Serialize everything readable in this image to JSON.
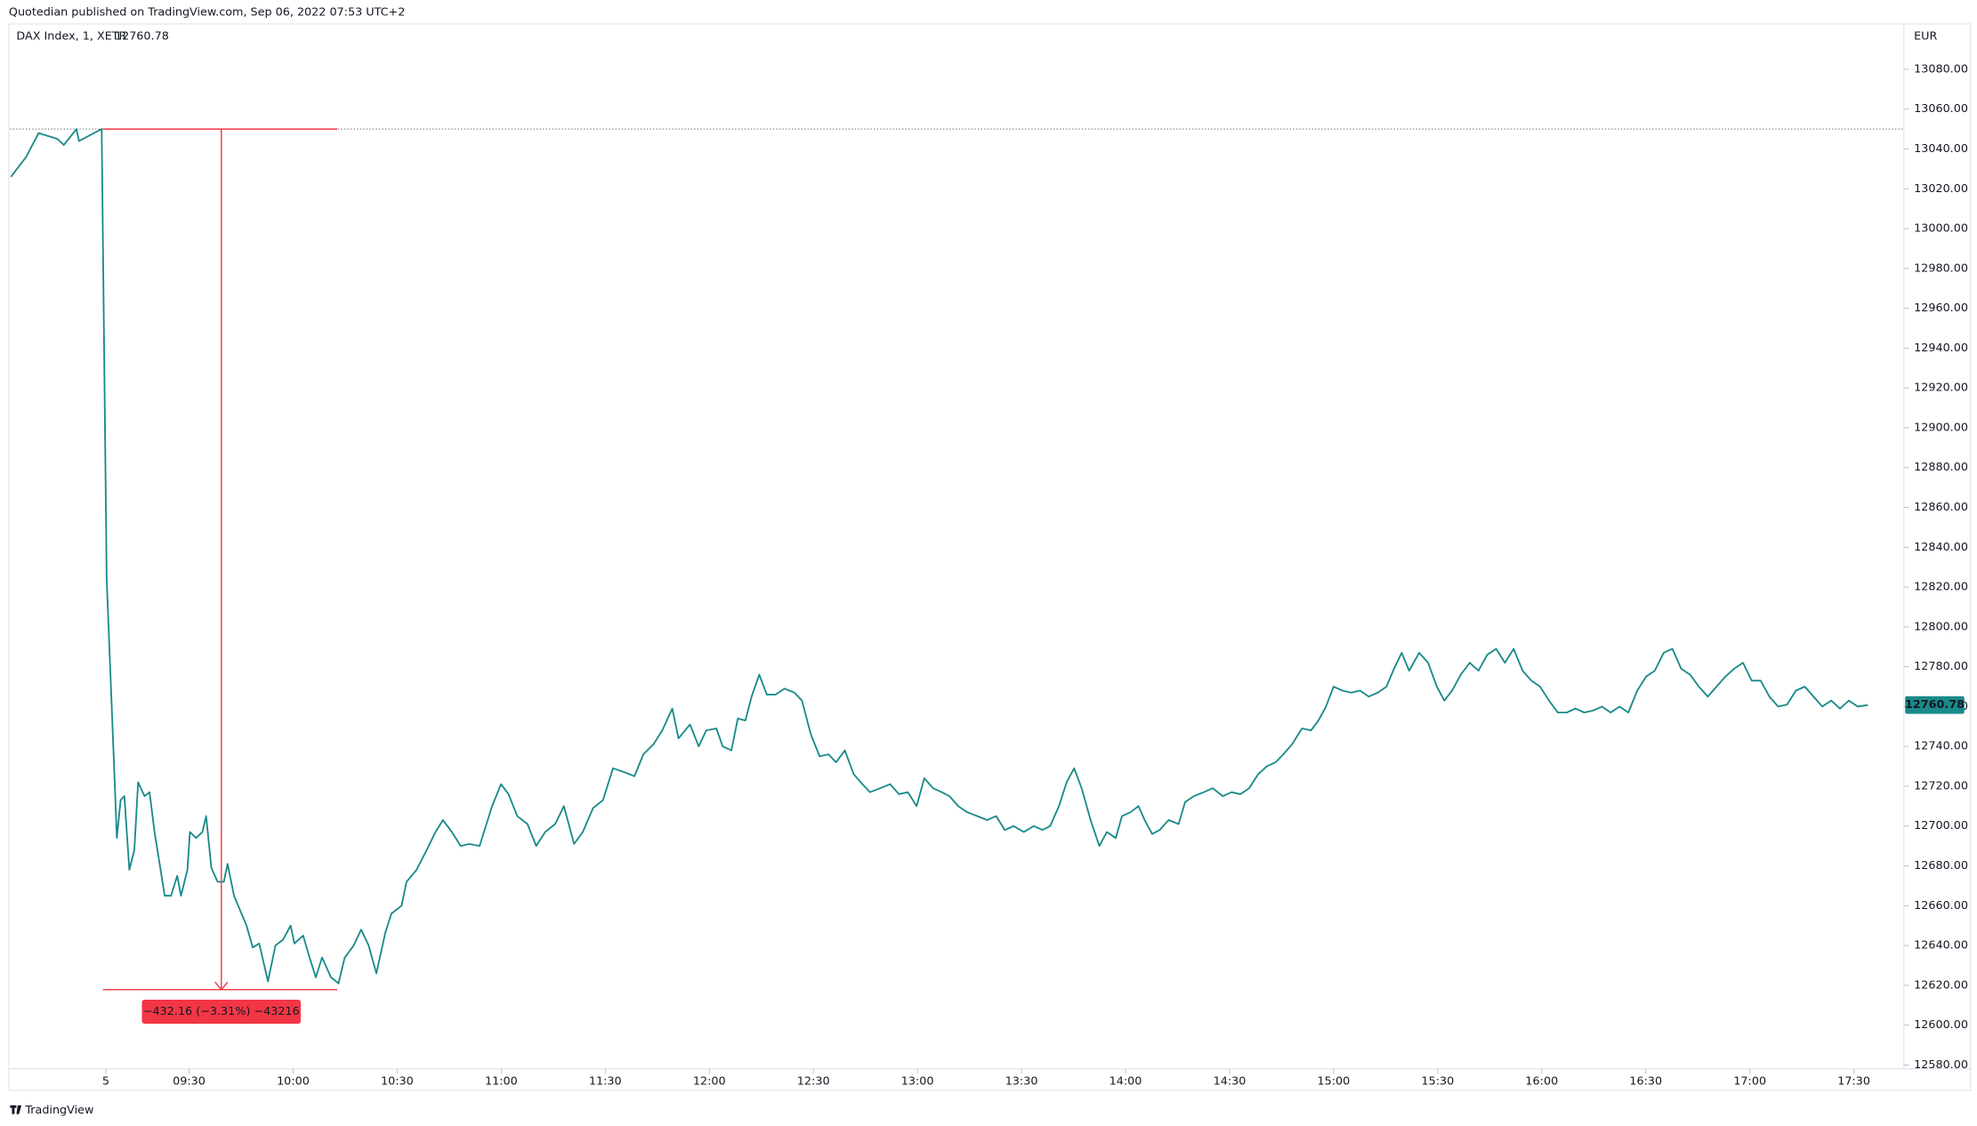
{
  "chart_data": {
    "type": "line",
    "publisher": "Quotedian published on TradingView.com, Sep 06, 2022 07:53 UTC+2",
    "currency": "EUR",
    "footer": "TradingView",
    "last_value": 12760.78,
    "series": [
      {
        "name": "DAX Index, 1, XETR",
        "color": "#1a8a8a",
        "x": [
          8.644,
          8.717,
          8.777,
          8.868,
          8.898,
          8.959,
          8.971,
          9.08,
          9.104,
          9.14,
          9.153,
          9.171,
          9.189,
          9.213,
          9.237,
          9.255,
          9.286,
          9.31,
          9.334,
          9.383,
          9.413,
          9.443,
          9.461,
          9.492,
          9.504,
          9.534,
          9.564,
          9.582,
          9.607,
          9.637,
          9.667,
          9.685,
          9.716,
          9.776,
          9.806,
          9.837,
          9.879,
          9.915,
          9.952,
          9.988,
          10.006,
          10.048,
          10.079,
          10.109,
          10.139,
          10.182,
          10.218,
          10.248,
          10.291,
          10.327,
          10.363,
          10.4,
          10.442,
          10.472,
          10.521,
          10.545,
          10.593,
          10.642,
          10.684,
          10.72,
          10.763,
          10.805,
          10.847,
          10.896,
          10.956,
          10.999,
          11.035,
          11.077,
          11.126,
          11.168,
          11.211,
          11.259,
          11.301,
          11.35,
          11.392,
          11.441,
          11.489,
          11.537,
          11.592,
          11.64,
          11.683,
          11.731,
          11.774,
          11.822,
          11.852,
          11.907,
          11.949,
          11.985,
          12.034,
          12.064,
          12.106,
          12.137,
          12.173,
          12.203,
          12.24,
          12.276,
          12.318,
          12.361,
          12.409,
          12.445,
          12.488,
          12.53,
          12.573,
          12.609,
          12.651,
          12.694,
          12.736,
          12.772,
          12.821,
          12.869,
          12.911,
          12.954,
          12.996,
          13.033,
          13.075,
          13.117,
          13.154,
          13.196,
          13.238,
          13.287,
          13.335,
          13.378,
          13.42,
          13.462,
          13.511,
          13.559,
          13.601,
          13.638,
          13.68,
          13.717,
          13.753,
          13.789,
          13.832,
          13.874,
          13.91,
          13.953,
          13.983,
          14.025,
          14.062,
          14.092,
          14.128,
          14.164,
          14.207,
          14.255,
          14.286,
          14.328,
          14.376,
          14.419,
          14.467,
          14.509,
          14.552,
          14.594,
          14.637,
          14.679,
          14.721,
          14.758,
          14.8,
          14.848,
          14.891,
          14.927,
          14.963,
          15.0,
          15.042,
          15.085,
          15.127,
          15.169,
          15.212,
          15.254,
          15.29,
          15.327,
          15.363,
          15.411,
          15.454,
          15.496,
          15.532,
          15.569,
          15.611,
          15.654,
          15.696,
          15.738,
          15.781,
          15.823,
          15.865,
          15.908,
          15.95,
          15.992,
          16.035,
          16.077,
          16.12,
          16.162,
          16.204,
          16.247,
          16.289,
          16.331,
          16.374,
          16.416,
          16.459,
          16.501,
          16.543,
          16.586,
          16.628,
          16.67,
          16.713,
          16.755,
          16.798,
          16.84,
          16.882,
          16.925,
          16.967,
          17.009,
          17.052,
          17.094,
          17.136,
          17.179,
          17.221,
          17.264,
          17.306,
          17.348,
          17.391,
          17.433,
          17.476,
          17.518,
          17.567
        ],
        "values": [
          13026,
          13036,
          13048,
          13045,
          13042,
          13050,
          13044,
          13050,
          12824,
          12729,
          12694,
          12713,
          12715,
          12678,
          12688,
          12722,
          12715,
          12717,
          12697,
          12665,
          12665,
          12675,
          12665,
          12678,
          12697,
          12694,
          12697,
          12705,
          12679,
          12672,
          12672,
          12681,
          12665,
          12650,
          12639,
          12641,
          12622,
          12640,
          12643,
          12650,
          12641,
          12645,
          12634,
          12624,
          12634,
          12624,
          12621,
          12634,
          12640,
          12648,
          12640,
          12626,
          12646,
          12656,
          12660,
          12672,
          12678,
          12688,
          12697,
          12703,
          12697,
          12690,
          12691,
          12690,
          12710,
          12721,
          12716,
          12705,
          12701,
          12690,
          12697,
          12701,
          12710,
          12691,
          12697,
          12709,
          12713,
          12729,
          12727,
          12725,
          12736,
          12741,
          12748,
          12759,
          12744,
          12751,
          12740,
          12748,
          12749,
          12740,
          12738,
          12754,
          12753,
          12765,
          12776,
          12766,
          12766,
          12769,
          12767,
          12763,
          12746,
          12735,
          12736,
          12732,
          12738,
          12726,
          12721,
          12717,
          12719,
          12721,
          12716,
          12717,
          12710,
          12724,
          12719,
          12717,
          12715,
          12710,
          12707,
          12705,
          12703,
          12705,
          12698,
          12700,
          12697,
          12700,
          12698,
          12700,
          12710,
          12722,
          12729,
          12719,
          12703,
          12690,
          12697,
          12694,
          12705,
          12707,
          12710,
          12703,
          12696,
          12698,
          12703,
          12701,
          12712,
          12715,
          12717,
          12719,
          12715,
          12717,
          12716,
          12719,
          12726,
          12730,
          12732,
          12736,
          12741,
          12749,
          12748,
          12753,
          12760,
          12770,
          12768,
          12767,
          12768,
          12765,
          12767,
          12770,
          12779,
          12787,
          12778,
          12787,
          12782,
          12770,
          12763,
          12768,
          12776,
          12782,
          12778,
          12786,
          12789,
          12782,
          12789,
          12778,
          12773,
          12770,
          12763,
          12757,
          12757,
          12759,
          12757,
          12758,
          12760,
          12757,
          12760,
          12757,
          12768,
          12775,
          12778,
          12787,
          12789,
          12779,
          12776,
          12770,
          12765,
          12770,
          12775,
          12779,
          12782,
          12773,
          12773,
          12765,
          12760,
          12761,
          12768,
          12770,
          12765,
          12760,
          12763,
          12759,
          12763,
          12760,
          12760.78
        ]
      }
    ],
    "reference_line": 13050,
    "measure": {
      "text": "−432.16 (−3.31%) −43216",
      "color": "#f23645",
      "x_start": 9.086,
      "x_end": 10.212,
      "x_arrow": 9.655,
      "y_start": 13050,
      "y_end": 12617.84
    },
    "xlim": [
      8.64,
      17.74
    ],
    "xticks": [
      {
        "value": 9.1,
        "label": "5"
      },
      {
        "value": 9.5,
        "label": "09:30"
      },
      {
        "value": 10,
        "label": "10:00"
      },
      {
        "value": 10.5,
        "label": "10:30"
      },
      {
        "value": 11,
        "label": "11:00"
      },
      {
        "value": 11.5,
        "label": "11:30"
      },
      {
        "value": 12,
        "label": "12:00"
      },
      {
        "value": 12.5,
        "label": "12:30"
      },
      {
        "value": 13,
        "label": "13:00"
      },
      {
        "value": 13.5,
        "label": "13:30"
      },
      {
        "value": 14,
        "label": "14:00"
      },
      {
        "value": 14.5,
        "label": "14:30"
      },
      {
        "value": 15,
        "label": "15:00"
      },
      {
        "value": 15.5,
        "label": "15:30"
      },
      {
        "value": 16,
        "label": "16:00"
      },
      {
        "value": 16.5,
        "label": "16:30"
      },
      {
        "value": 17,
        "label": "17:00"
      },
      {
        "value": 17.5,
        "label": "17:30"
      }
    ],
    "ylim": [
      12575,
      13100
    ],
    "yticks": [
      {
        "value": 12580,
        "label": "12580.00"
      },
      {
        "value": 12600,
        "label": "12600.00"
      },
      {
        "value": 12620,
        "label": "12620.00"
      },
      {
        "value": 12640,
        "label": "12640.00"
      },
      {
        "value": 12660,
        "label": "12660.00"
      },
      {
        "value": 12680,
        "label": "12680.00"
      },
      {
        "value": 12700,
        "label": "12700.00"
      },
      {
        "value": 12720,
        "label": "12720.00"
      },
      {
        "value": 12740,
        "label": "12740.00"
      },
      {
        "value": 12760,
        "label": "12760.00"
      },
      {
        "value": 12780,
        "label": "12780.00"
      },
      {
        "value": 12800,
        "label": "12800.00"
      },
      {
        "value": 12820,
        "label": "12820.00"
      },
      {
        "value": 12840,
        "label": "12840.00"
      },
      {
        "value": 12860,
        "label": "12860.00"
      },
      {
        "value": 12880,
        "label": "12880.00"
      },
      {
        "value": 12900,
        "label": "12900.00"
      },
      {
        "value": 12920,
        "label": "12920.00"
      },
      {
        "value": 12940,
        "label": "12940.00"
      },
      {
        "value": 12960,
        "label": "12960.00"
      },
      {
        "value": 12980,
        "label": "12980.00"
      },
      {
        "value": 13000,
        "label": "13000.00"
      },
      {
        "value": 13020,
        "label": "13020.00"
      },
      {
        "value": 13040,
        "label": "13040.00"
      },
      {
        "value": 13060,
        "label": "13060.00"
      },
      {
        "value": 13080,
        "label": "13080.00"
      }
    ]
  }
}
